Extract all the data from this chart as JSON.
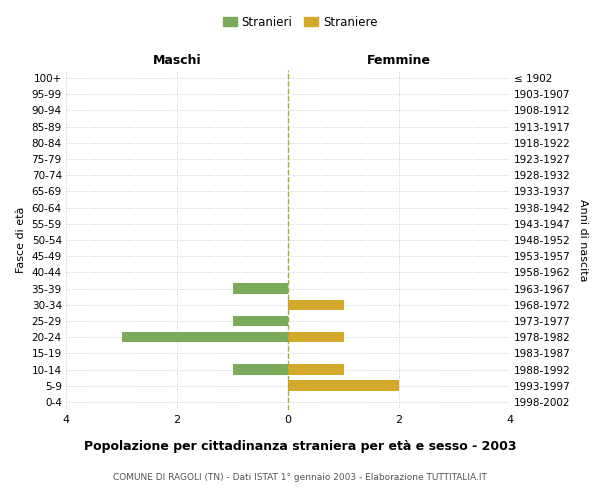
{
  "age_groups_bottom_to_top": [
    "0-4",
    "5-9",
    "10-14",
    "15-19",
    "20-24",
    "25-29",
    "30-34",
    "35-39",
    "40-44",
    "45-49",
    "50-54",
    "55-59",
    "60-64",
    "65-69",
    "70-74",
    "75-79",
    "80-84",
    "85-89",
    "90-94",
    "95-99",
    "100+"
  ],
  "birth_years_bottom_to_top": [
    "1998-2002",
    "1993-1997",
    "1988-1992",
    "1983-1987",
    "1978-1982",
    "1973-1977",
    "1968-1972",
    "1963-1967",
    "1958-1962",
    "1953-1957",
    "1948-1952",
    "1943-1947",
    "1938-1942",
    "1933-1937",
    "1928-1932",
    "1923-1927",
    "1918-1922",
    "1913-1917",
    "1908-1912",
    "1903-1907",
    "≤ 1902"
  ],
  "maschi_bottom_to_top": [
    0,
    0,
    1,
    0,
    3,
    1,
    0,
    1,
    0,
    0,
    0,
    0,
    0,
    0,
    0,
    0,
    0,
    0,
    0,
    0,
    0
  ],
  "femmine_bottom_to_top": [
    0,
    2,
    1,
    0,
    1,
    0,
    1,
    0,
    0,
    0,
    0,
    0,
    0,
    0,
    0,
    0,
    0,
    0,
    0,
    0,
    0
  ],
  "color_maschi": "#7aaa5a",
  "color_femmine": "#d4a82a",
  "title": "Popolazione per cittadinanza straniera per età e sesso - 2003",
  "subtitle": "COMUNE DI RAGOLI (TN) - Dati ISTAT 1° gennaio 2003 - Elaborazione TUTTITALIA.IT",
  "header_left": "Maschi",
  "header_right": "Femmine",
  "ylabel_left": "Fasce di età",
  "ylabel_right": "Anni di nascita",
  "legend_maschi": "Stranieri",
  "legend_femmine": "Straniere",
  "xlim": 4,
  "background_color": "#ffffff",
  "grid_color": "#cccccc",
  "dashed_line_color": "#aaa830"
}
